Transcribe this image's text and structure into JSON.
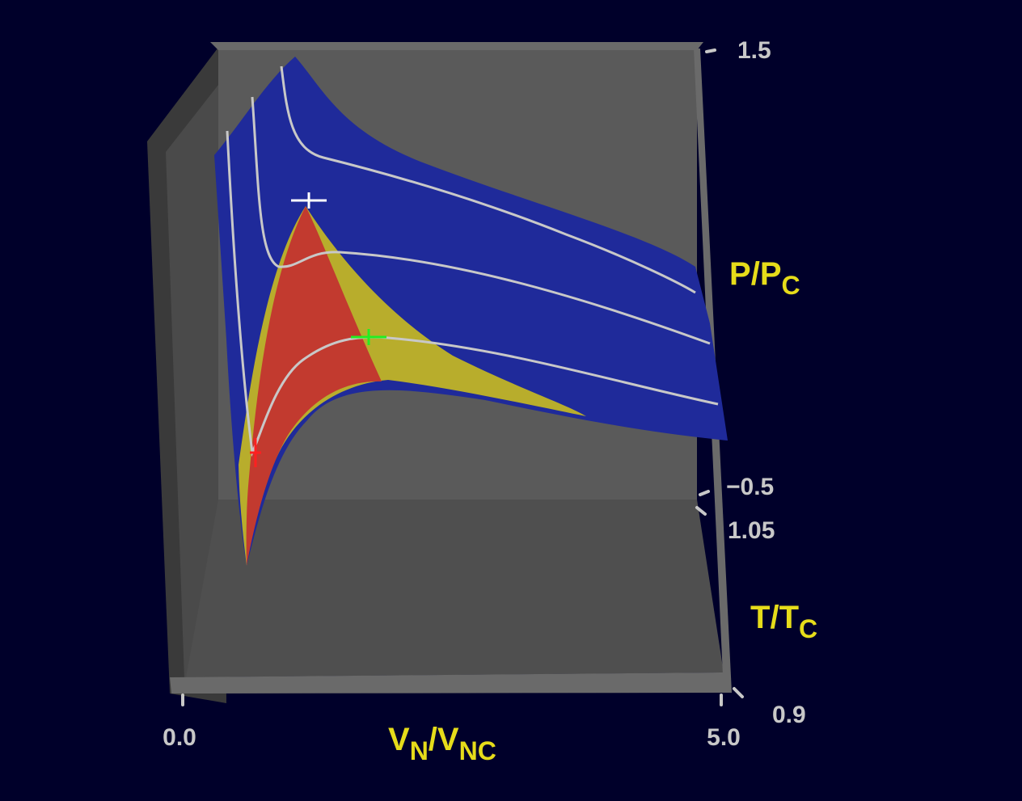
{
  "chart_data": {
    "type": "surface",
    "title": "",
    "colors": {
      "background": "#00002a",
      "box": "#595959",
      "surface_single_phase": "#1f2a9a",
      "surface_two_phase": "#b8ad2c",
      "surface_spinodal": "#c23a2f",
      "isotherm": "#c8c8c8",
      "axis_title": "#e6dc1a",
      "tick_label": "#c8c8c8",
      "marker_critical": "#ffffff",
      "marker_green": "#22ee22",
      "marker_red": "#ff2020"
    },
    "axes": {
      "x": {
        "label_main": "V",
        "label_sub": "N",
        "label_sep": "/",
        "label_main2": "V",
        "label_sub2": "NC",
        "range": [
          0.0,
          5.0
        ],
        "tick_labels": [
          "0.0",
          "5.0"
        ]
      },
      "y": {
        "label_main": "P",
        "label_sep": "/",
        "label_main2": "P",
        "label_sub2": "C",
        "range": [
          -0.5,
          1.5
        ],
        "tick_labels": [
          "1.5",
          "-0.5"
        ]
      },
      "z": {
        "label_main": "T",
        "label_sep": "/",
        "label_main2": "T",
        "label_sub2": "C",
        "range": [
          0.9,
          1.05
        ],
        "tick_labels": [
          "1.05",
          "0.9"
        ]
      }
    },
    "isotherms": [
      {
        "T": 1.05
      },
      {
        "T": 1.0
      },
      {
        "T": 0.95
      },
      {
        "T": 0.9
      }
    ],
    "markers": [
      {
        "name": "critical-point",
        "V": 1.0,
        "T": 1.0,
        "P": 1.0,
        "color_key": "marker_critical"
      },
      {
        "name": "green-marker",
        "V": 2.0,
        "T": 0.9,
        "P": 0.6,
        "color_key": "marker_green"
      },
      {
        "name": "red-marker",
        "V": 0.5,
        "T": 0.9,
        "P": -0.15,
        "color_key": "marker_red"
      }
    ]
  }
}
